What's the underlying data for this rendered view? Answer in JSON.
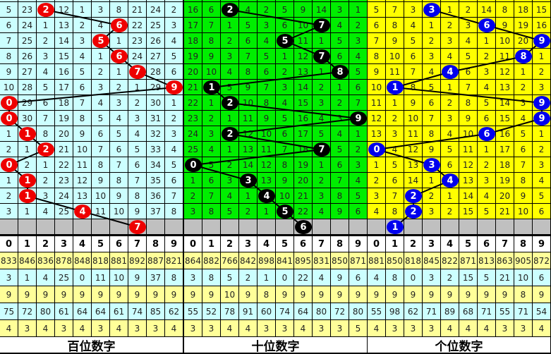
{
  "chart_data": {
    "type": "table",
    "panels": [
      {
        "title": "百位数字",
        "bg": "#ccffff",
        "ball_color": "#ee0000",
        "rows": [
          [
            5,
            23,
            2,
            12,
            1,
            3,
            8,
            21,
            24,
            2
          ],
          [
            6,
            24,
            1,
            13,
            2,
            4,
            6,
            22,
            25,
            3
          ],
          [
            7,
            25,
            2,
            14,
            3,
            5,
            1,
            23,
            26,
            4
          ],
          [
            8,
            26,
            3,
            15,
            4,
            1,
            6,
            24,
            27,
            5
          ],
          [
            9,
            27,
            4,
            16,
            5,
            2,
            1,
            7,
            28,
            6
          ],
          [
            10,
            28,
            5,
            17,
            6,
            3,
            2,
            1,
            29,
            9
          ],
          [
            0,
            29,
            6,
            18,
            7,
            4,
            3,
            2,
            30,
            1
          ],
          [
            0,
            30,
            7,
            19,
            8,
            5,
            4,
            3,
            31,
            2
          ],
          [
            1,
            1,
            8,
            20,
            9,
            6,
            5,
            4,
            32,
            3
          ],
          [
            2,
            1,
            2,
            21,
            10,
            7,
            6,
            5,
            33,
            4
          ],
          [
            0,
            2,
            1,
            22,
            11,
            8,
            7,
            6,
            34,
            5
          ],
          [
            1,
            1,
            2,
            23,
            12,
            9,
            8,
            7,
            35,
            6
          ],
          [
            2,
            1,
            3,
            24,
            13,
            10,
            9,
            8,
            36,
            7
          ],
          [
            3,
            1,
            4,
            25,
            4,
            11,
            10,
            9,
            37,
            8
          ]
        ],
        "hits": [
          2,
          6,
          5,
          6,
          7,
          9,
          0,
          0,
          1,
          2,
          0,
          1,
          1,
          4
        ],
        "predicted": 7,
        "stats": [
          [
            833,
            846,
            836,
            878,
            848,
            818,
            881,
            892,
            887,
            821
          ],
          [
            3,
            1,
            4,
            25,
            0,
            11,
            10,
            9,
            37,
            8
          ],
          [
            9,
            9,
            9,
            9,
            9,
            9,
            9,
            9,
            9,
            9
          ],
          [
            75,
            72,
            80,
            61,
            64,
            64,
            61,
            74,
            85,
            62
          ],
          [
            4,
            3,
            4,
            3,
            4,
            3,
            4,
            3,
            3,
            4
          ]
        ]
      },
      {
        "title": "十位数字",
        "bg": "#00ee00",
        "ball_color": "#000000",
        "rows": [
          [
            16,
            6,
            2,
            4,
            2,
            5,
            9,
            14,
            3,
            1
          ],
          [
            17,
            7,
            1,
            5,
            3,
            6,
            10,
            7,
            4,
            2
          ],
          [
            18,
            8,
            2,
            6,
            4,
            5,
            11,
            1,
            5,
            3
          ],
          [
            19,
            9,
            3,
            7,
            5,
            1,
            12,
            7,
            6,
            4
          ],
          [
            20,
            10,
            4,
            8,
            6,
            2,
            13,
            1,
            8,
            5
          ],
          [
            21,
            1,
            5,
            9,
            7,
            3,
            14,
            2,
            1,
            6
          ],
          [
            22,
            1,
            2,
            10,
            8,
            4,
            15,
            3,
            2,
            7
          ],
          [
            23,
            2,
            1,
            11,
            9,
            5,
            16,
            4,
            3,
            9
          ],
          [
            24,
            3,
            2,
            12,
            10,
            6,
            17,
            5,
            4,
            1
          ],
          [
            25,
            4,
            1,
            13,
            11,
            7,
            18,
            7,
            5,
            2
          ],
          [
            0,
            5,
            2,
            14,
            12,
            8,
            19,
            1,
            6,
            3
          ],
          [
            1,
            6,
            3,
            3,
            13,
            9,
            20,
            2,
            7,
            4
          ],
          [
            2,
            7,
            4,
            1,
            4,
            10,
            21,
            3,
            8,
            5
          ],
          [
            3,
            8,
            5,
            2,
            1,
            5,
            22,
            4,
            9,
            6
          ]
        ],
        "hits": [
          2,
          7,
          5,
          7,
          8,
          1,
          2,
          9,
          2,
          7,
          0,
          3,
          4,
          5
        ],
        "predicted": 6,
        "stats": [
          [
            864,
            882,
            766,
            842,
            898,
            841,
            895,
            831,
            850,
            871
          ],
          [
            3,
            8,
            5,
            2,
            1,
            0,
            22,
            4,
            9,
            6
          ],
          [
            9,
            9,
            10,
            9,
            8,
            9,
            9,
            9,
            9,
            9
          ],
          [
            55,
            52,
            78,
            91,
            60,
            74,
            64,
            80,
            72,
            80
          ],
          [
            3,
            3,
            4,
            4,
            3,
            3,
            4,
            3,
            3,
            5
          ]
        ]
      },
      {
        "title": "个位数字",
        "bg": "#ffff00",
        "ball_color": "#0000ee",
        "rows": [
          [
            5,
            7,
            3,
            3,
            1,
            2,
            14,
            8,
            18,
            15
          ],
          [
            6,
            8,
            4,
            1,
            2,
            3,
            6,
            9,
            19,
            16
          ],
          [
            7,
            9,
            5,
            2,
            3,
            4,
            1,
            10,
            20,
            9
          ],
          [
            8,
            10,
            6,
            3,
            4,
            5,
            2,
            11,
            8,
            1
          ],
          [
            9,
            11,
            7,
            4,
            4,
            6,
            3,
            12,
            1,
            2
          ],
          [
            10,
            1,
            8,
            5,
            1,
            7,
            4,
            13,
            2,
            3
          ],
          [
            11,
            1,
            9,
            6,
            2,
            8,
            5,
            14,
            3,
            9
          ],
          [
            12,
            2,
            10,
            7,
            3,
            9,
            6,
            15,
            4,
            9
          ],
          [
            13,
            3,
            11,
            8,
            4,
            10,
            6,
            16,
            5,
            1
          ],
          [
            0,
            4,
            12,
            9,
            5,
            11,
            1,
            17,
            6,
            2
          ],
          [
            1,
            5,
            13,
            3,
            6,
            12,
            2,
            18,
            7,
            3
          ],
          [
            2,
            6,
            14,
            1,
            4,
            13,
            3,
            19,
            8,
            4
          ],
          [
            3,
            7,
            2,
            2,
            1,
            14,
            4,
            20,
            9,
            5
          ],
          [
            4,
            8,
            2,
            3,
            2,
            15,
            5,
            21,
            10,
            6
          ]
        ],
        "hits": [
          3,
          6,
          9,
          8,
          4,
          1,
          9,
          9,
          6,
          0,
          3,
          4,
          2,
          2
        ],
        "predicted": 1,
        "stats": [
          [
            881,
            850,
            818,
            845,
            822,
            871,
            813,
            863,
            905,
            872
          ],
          [
            4,
            8,
            0,
            3,
            2,
            15,
            5,
            21,
            10,
            6
          ],
          [
            9,
            9,
            9,
            9,
            9,
            9,
            9,
            9,
            8,
            9
          ],
          [
            55,
            98,
            62,
            71,
            89,
            68,
            71,
            55,
            71,
            54
          ],
          [
            4,
            3,
            3,
            3,
            4,
            4,
            4,
            3,
            3,
            4
          ]
        ]
      }
    ],
    "header_digits": [
      "0",
      "1",
      "2",
      "3",
      "4",
      "5",
      "6",
      "7",
      "8",
      "9"
    ],
    "stat_row_colors": [
      "#ffff99",
      "#ccffff",
      "#ffff99",
      "#ccffff",
      "#ffff99"
    ]
  }
}
